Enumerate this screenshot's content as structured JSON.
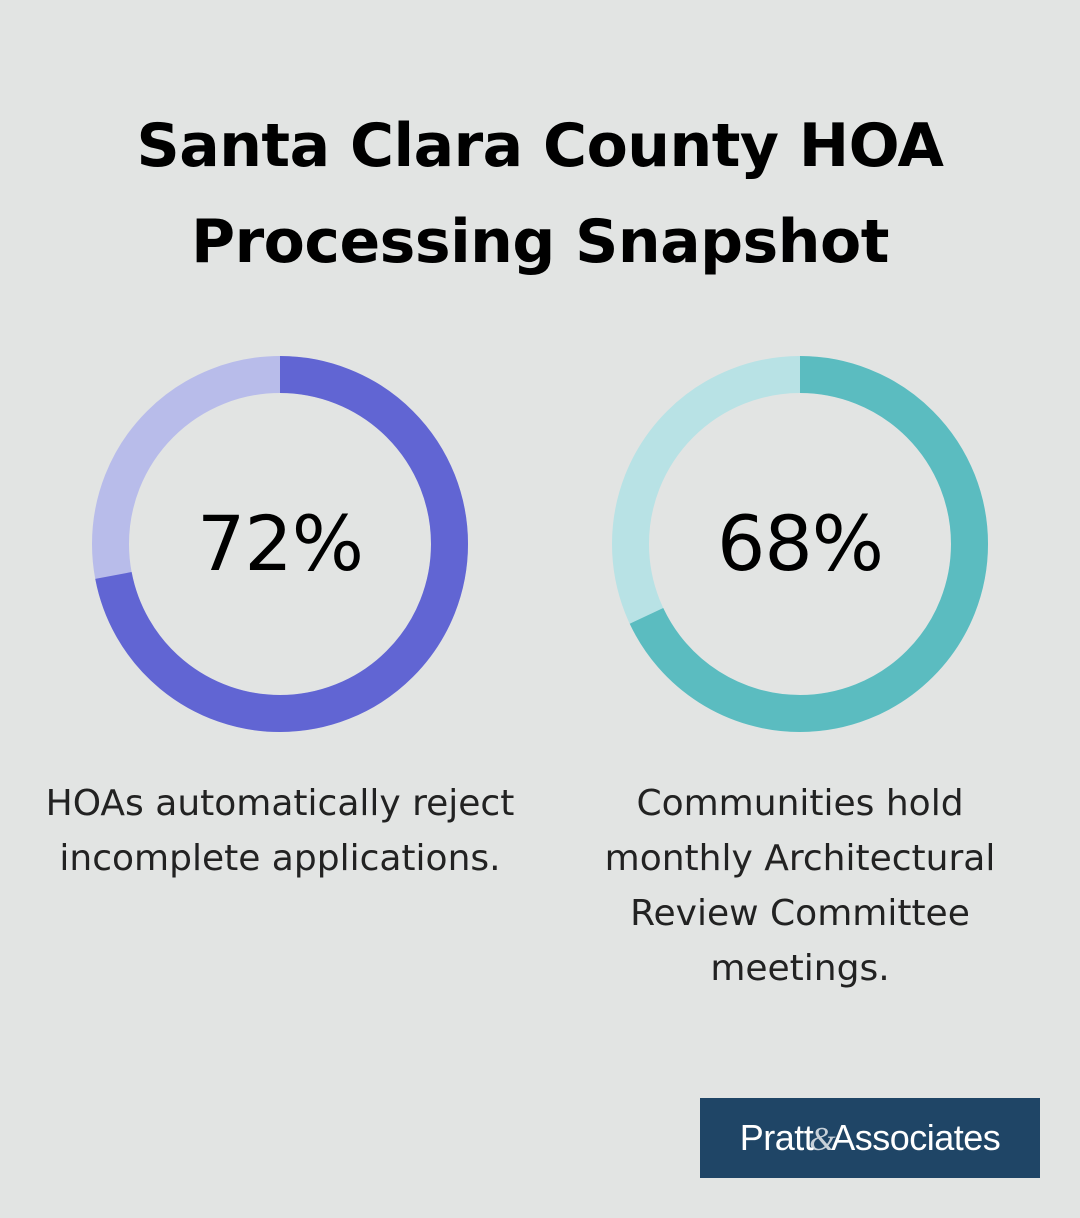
{
  "title": {
    "line1": "Santa Clara County HOA",
    "line2": "Processing Snapshot"
  },
  "chart_data": [
    {
      "type": "donut",
      "value": 72,
      "label": "72%",
      "description": "HOAs automatically reject incomplete applications.",
      "color_filled": "#6165d3",
      "color_track": "#b8bcea"
    },
    {
      "type": "donut",
      "value": 68,
      "label": "68%",
      "description": "Communities hold monthly Architectural Review Committee meetings.",
      "color_filled": "#5bbcc0",
      "color_track": "#b8e2e5"
    }
  ],
  "logo": {
    "part1": "Pratt",
    "ampersand": "&",
    "part2": "Associates",
    "background": "#1f4566"
  }
}
